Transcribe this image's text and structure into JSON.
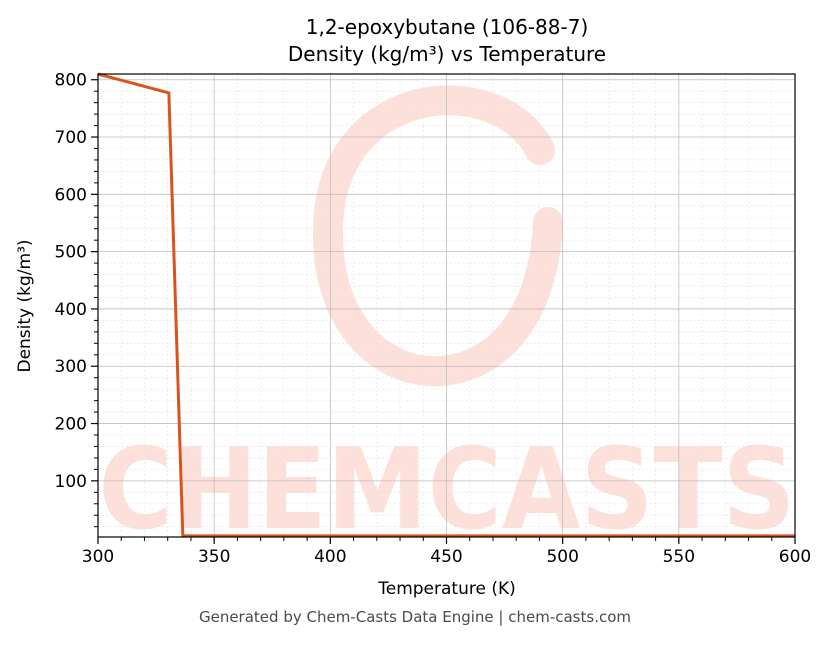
{
  "chart_data": {
    "type": "line",
    "title": "1,2-epoxybutane (106-88-7)",
    "subtitle": "Density (kg/m³) vs Temperature",
    "xlabel": "Temperature (K)",
    "ylabel": "Density (kg/m³)",
    "xlim": [
      300,
      600
    ],
    "ylim": [
      2,
      810
    ],
    "x_ticks": [
      300,
      350,
      400,
      450,
      500,
      550,
      600
    ],
    "y_ticks": [
      100,
      200,
      300,
      400,
      500,
      600,
      700,
      800
    ],
    "grid": true,
    "legend": "none",
    "series": [
      {
        "color": "#d9531e",
        "x": [
          300,
          330.5,
          336.5,
          340,
          400,
          450,
          500,
          550,
          600
        ],
        "y": [
          810,
          777,
          4,
          4,
          4,
          4,
          4,
          4,
          4
        ]
      }
    ]
  },
  "watermark": {
    "text": "CHEMCASTS",
    "color": "#fde0da"
  },
  "footer": "Generated by Chem-Casts Data Engine | chem-casts.com"
}
